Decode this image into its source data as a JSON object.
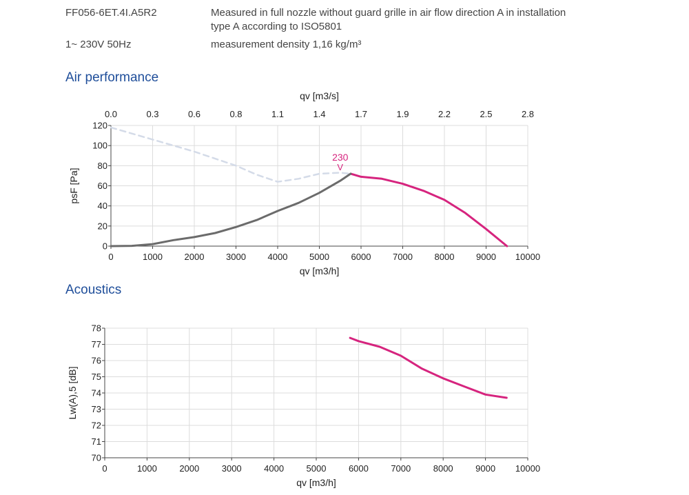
{
  "header": {
    "model": "FF056-6ET.4I.A5R2",
    "supply": "1~ 230V 50Hz",
    "description_line1": "Measured in full nozzle without guard grille in air flow direction A in installation",
    "description_line2": "type A according to ISO5801",
    "density": "measurement density 1,16 kg/m³"
  },
  "sections": {
    "air": "Air performance",
    "acoustics": "Acoustics"
  },
  "colors": {
    "main_curve": "#d6247e",
    "lower_curve": "#6b6b6b",
    "dashed_curve": "#d4dbe8",
    "grid": "#dcdcdc",
    "title": "#1f4e9a"
  },
  "chart_data": [
    {
      "type": "line",
      "xlabel": "qv [m3/h]",
      "x2label": "qv [m3/s]",
      "ylabel": "psF [Pa]",
      "xlim": [
        0,
        10000
      ],
      "ylim": [
        0,
        120
      ],
      "xticks": [
        "0",
        "1000",
        "2000",
        "3000",
        "4000",
        "5000",
        "6000",
        "7000",
        "8000",
        "9000",
        "10000"
      ],
      "x2ticks": [
        "0.0",
        "0.3",
        "0.6",
        "0.8",
        "1.1",
        "1.4",
        "1.7",
        "1.9",
        "2.2",
        "2.5",
        "2.8"
      ],
      "yticks": [
        "0",
        "20",
        "40",
        "60",
        "80",
        "100",
        "120"
      ],
      "grid": true,
      "annotation": {
        "text": "230",
        "subtext": "V",
        "x": 5500,
        "y": 85
      },
      "series": [
        {
          "style": "solid",
          "color": "#d6247e",
          "x": [
            5750,
            6000,
            6500,
            7000,
            7500,
            8000,
            8500,
            9000,
            9500
          ],
          "y": [
            72,
            69,
            67,
            62,
            55,
            46,
            33,
            17,
            0
          ]
        },
        {
          "style": "solid",
          "color": "#6b6b6b",
          "x": [
            0,
            500,
            1000,
            1500,
            2000,
            2500,
            3000,
            3500,
            4000,
            4500,
            5000,
            5500,
            5750
          ],
          "y": [
            0,
            0.3,
            2,
            6,
            9,
            13,
            19,
            26,
            35,
            43,
            53,
            65,
            72
          ]
        },
        {
          "style": "dashed",
          "color": "#d4dbe8",
          "x": [
            0,
            1000,
            2000,
            3000,
            3500,
            4000,
            4500,
            5000,
            5500,
            5750
          ],
          "y": [
            118,
            106,
            94,
            80,
            71,
            64,
            67,
            72,
            73,
            72
          ]
        }
      ]
    },
    {
      "type": "line",
      "xlabel": "qv [m3/h]",
      "ylabel": "Lw(A),5 [dB]",
      "xlim": [
        0,
        10000
      ],
      "ylim": [
        70,
        78
      ],
      "xticks": [
        "0",
        "1000",
        "2000",
        "3000",
        "4000",
        "5000",
        "6000",
        "7000",
        "8000",
        "9000",
        "10000"
      ],
      "yticks": [
        "70",
        "71",
        "72",
        "73",
        "74",
        "75",
        "76",
        "77",
        "78"
      ],
      "grid": true,
      "series": [
        {
          "style": "solid",
          "color": "#d6247e",
          "x": [
            5800,
            6000,
            6500,
            7000,
            7500,
            8000,
            8500,
            9000,
            9500
          ],
          "y": [
            77.4,
            77.2,
            76.85,
            76.3,
            75.5,
            74.9,
            74.4,
            73.9,
            73.7
          ]
        }
      ]
    }
  ]
}
